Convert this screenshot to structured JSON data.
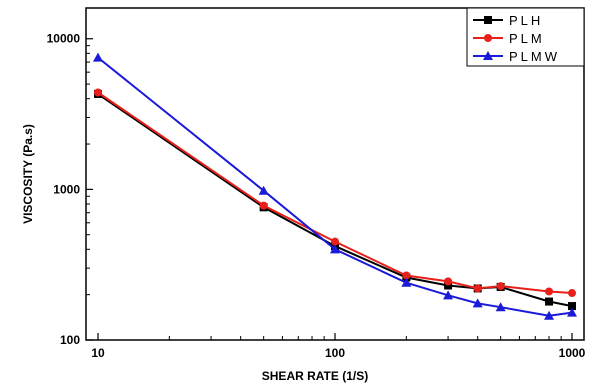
{
  "chart_data": {
    "type": "line",
    "title": "",
    "xlabel": "SHEAR RATE (1/S)",
    "ylabel": "VISCOSITY (Pa.s)",
    "x_scale": "log",
    "y_scale": "log",
    "xlim": [
      10,
      1000
    ],
    "ylim": [
      100,
      16000
    ],
    "x_ticks": [
      10,
      100,
      1000
    ],
    "x_tick_labels": [
      "10",
      "100",
      "1000"
    ],
    "y_ticks": [
      100,
      1000,
      10000
    ],
    "y_tick_labels": [
      "100",
      "1000",
      "10000"
    ],
    "grid": false,
    "legend_position": "top-right",
    "series": [
      {
        "name": "PLH",
        "color": "#000000",
        "marker": "square",
        "x": [
          10,
          50,
          100,
          200,
          300,
          400,
          500,
          800,
          1000
        ],
        "y": [
          4300,
          760,
          420,
          260,
          230,
          220,
          225,
          180,
          168
        ]
      },
      {
        "name": "PLM",
        "color": "#e8201c",
        "marker": "circle",
        "x": [
          10,
          50,
          100,
          200,
          300,
          400,
          500,
          800,
          1000
        ],
        "y": [
          4400,
          780,
          450,
          268,
          245,
          220,
          228,
          210,
          205
        ]
      },
      {
        "name": "PLMW",
        "color": "#1a1ad8",
        "marker": "triangle",
        "x": [
          10,
          50,
          100,
          200,
          300,
          400,
          500,
          800,
          1000
        ],
        "y": [
          7500,
          980,
          400,
          240,
          198,
          175,
          165,
          145,
          152
        ]
      }
    ]
  }
}
